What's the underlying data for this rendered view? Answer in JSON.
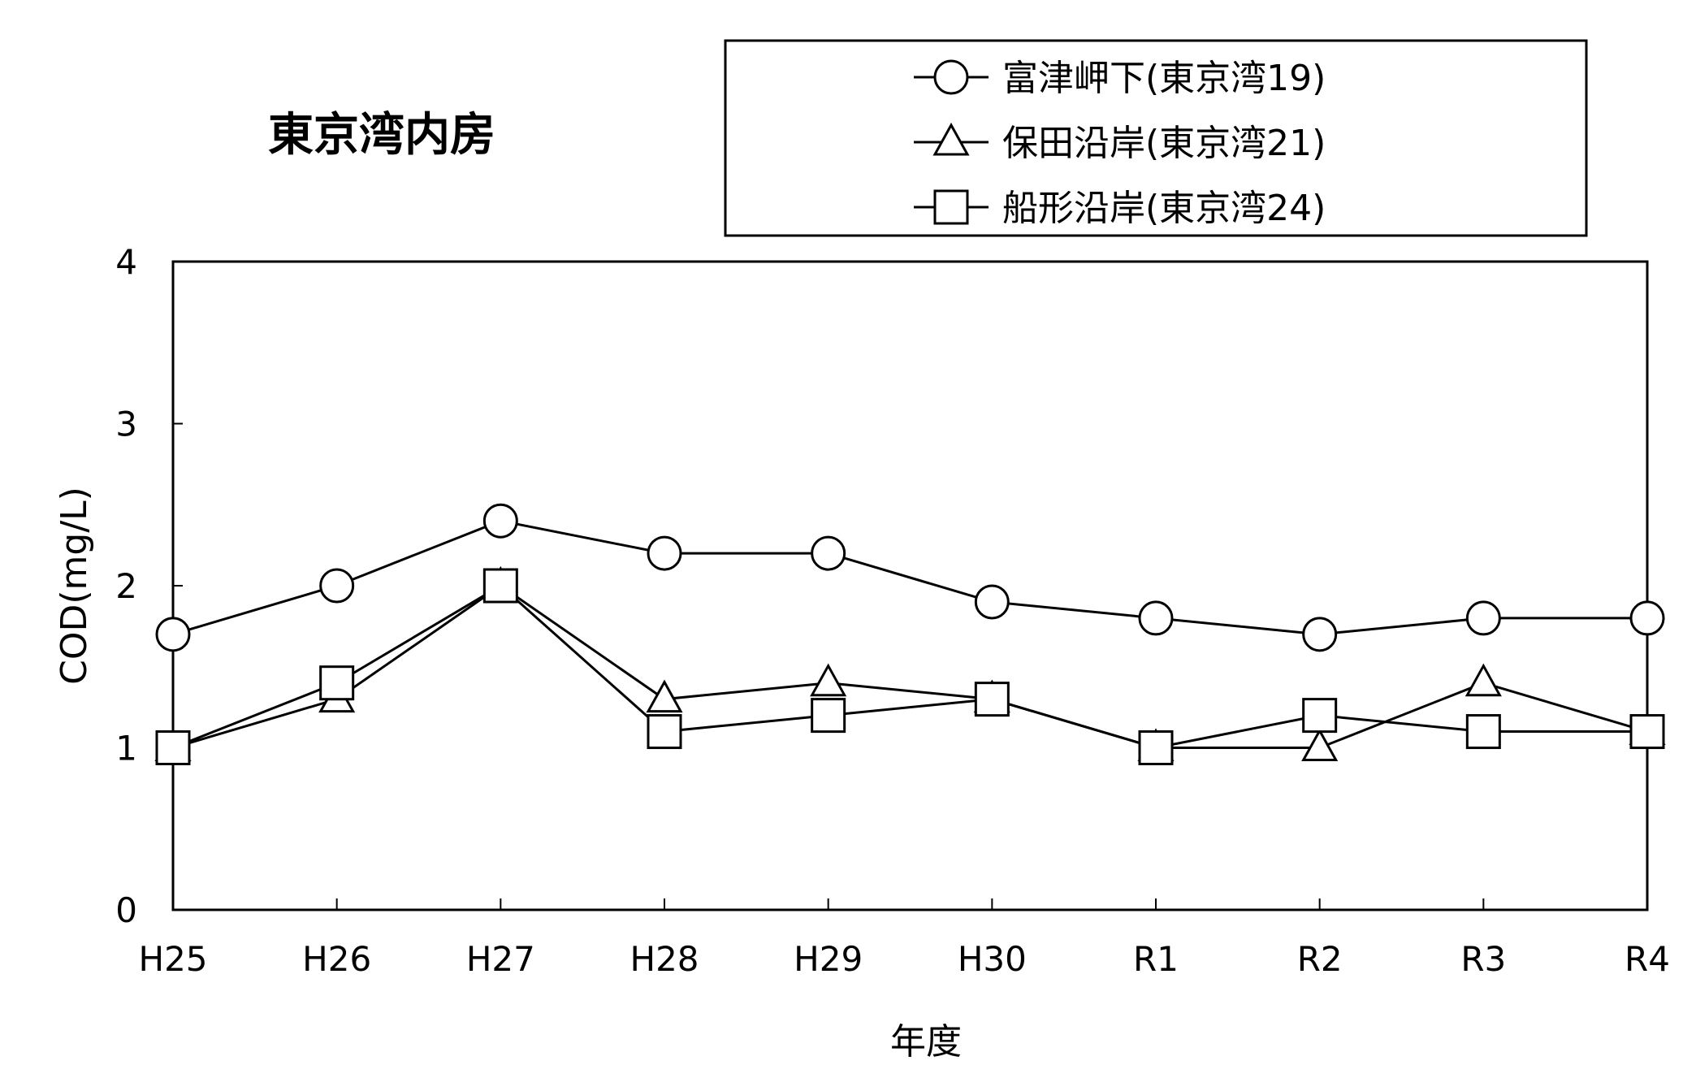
{
  "chart_data": {
    "type": "line",
    "title": "東京湾内房",
    "xlabel": "年度",
    "ylabel": "COD(mg/L)",
    "ylim": [
      0,
      4
    ],
    "yticks": [
      "0",
      "1",
      "2",
      "3",
      "4"
    ],
    "grid": false,
    "legend_position": "top-right",
    "categories": [
      "H25",
      "H26",
      "H27",
      "H28",
      "H29",
      "H30",
      "R1",
      "R2",
      "R3",
      "R4"
    ],
    "series": [
      {
        "name": "富津岬下(東京湾19)",
        "marker": "circle",
        "values": [
          1.7,
          2.0,
          2.4,
          2.2,
          2.2,
          1.9,
          1.8,
          1.7,
          1.8,
          1.8
        ]
      },
      {
        "name": "保田沿岸(東京湾21)",
        "marker": "triangle",
        "values": [
          1.0,
          1.3,
          2.0,
          1.3,
          1.4,
          1.3,
          1.0,
          1.0,
          1.4,
          1.1
        ]
      },
      {
        "name": "船形沿岸(東京湾24)",
        "marker": "square",
        "values": [
          1.0,
          1.4,
          2.0,
          1.1,
          1.2,
          1.3,
          1.0,
          1.2,
          1.1,
          1.1
        ]
      }
    ]
  }
}
